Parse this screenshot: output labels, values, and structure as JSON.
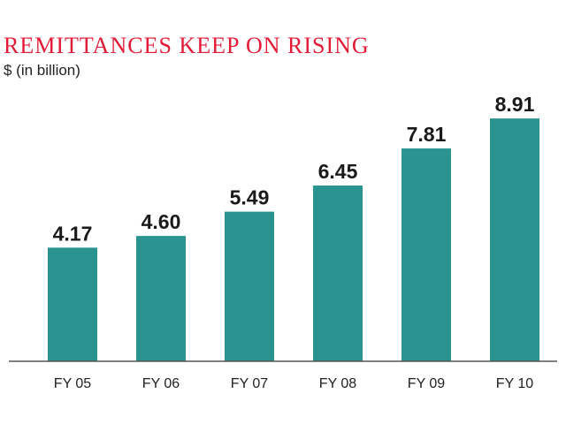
{
  "chart_data": {
    "type": "bar",
    "title": "REMITTANCES KEEP ON RISING",
    "subtitle": "$ (in billion)",
    "categories": [
      "FY 05",
      "FY 06",
      "FY 07",
      "FY 08",
      "FY 09",
      "FY 10"
    ],
    "values": [
      4.17,
      4.6,
      5.49,
      6.45,
      7.81,
      8.91
    ],
    "value_labels": [
      "4.17",
      "4.60",
      "5.49",
      "6.45",
      "7.81",
      "8.91"
    ],
    "ylim": [
      0,
      9.5
    ],
    "grid": false,
    "bar_color": "#2a9590",
    "title_color": "#e31b37"
  }
}
